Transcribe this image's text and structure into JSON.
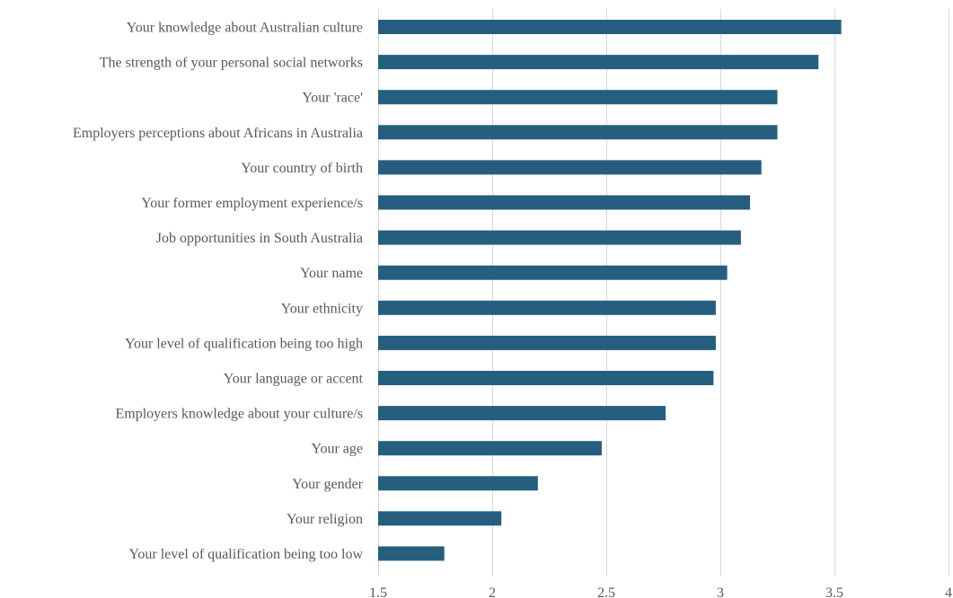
{
  "chart_data": {
    "type": "bar",
    "orientation": "horizontal",
    "title": "",
    "xlabel": "",
    "ylabel": "",
    "xlim": [
      1.5,
      4
    ],
    "xticks": [
      1.5,
      2,
      2.5,
      3,
      3.5,
      4
    ],
    "grid": "vertical",
    "legend": "none",
    "bar_color": "#255e7e",
    "categories": [
      "Your knowledge about Australian culture",
      "The strength of your personal social networks",
      "Your 'race'",
      "Employers perceptions about Africans in Australia",
      "Your country of birth",
      "Your former employment experience/s",
      "Job opportunities in South Australia",
      "Your name",
      "Your ethnicity",
      "Your level of qualification being too high",
      "Your language or accent",
      "Employers knowledge about your culture/s",
      "Your age",
      "Your gender",
      "Your religion",
      "Your level of qualification being too low"
    ],
    "values": [
      3.53,
      3.43,
      3.25,
      3.25,
      3.18,
      3.13,
      3.09,
      3.03,
      2.98,
      2.98,
      2.97,
      2.76,
      2.48,
      2.2,
      2.04,
      1.79
    ]
  }
}
